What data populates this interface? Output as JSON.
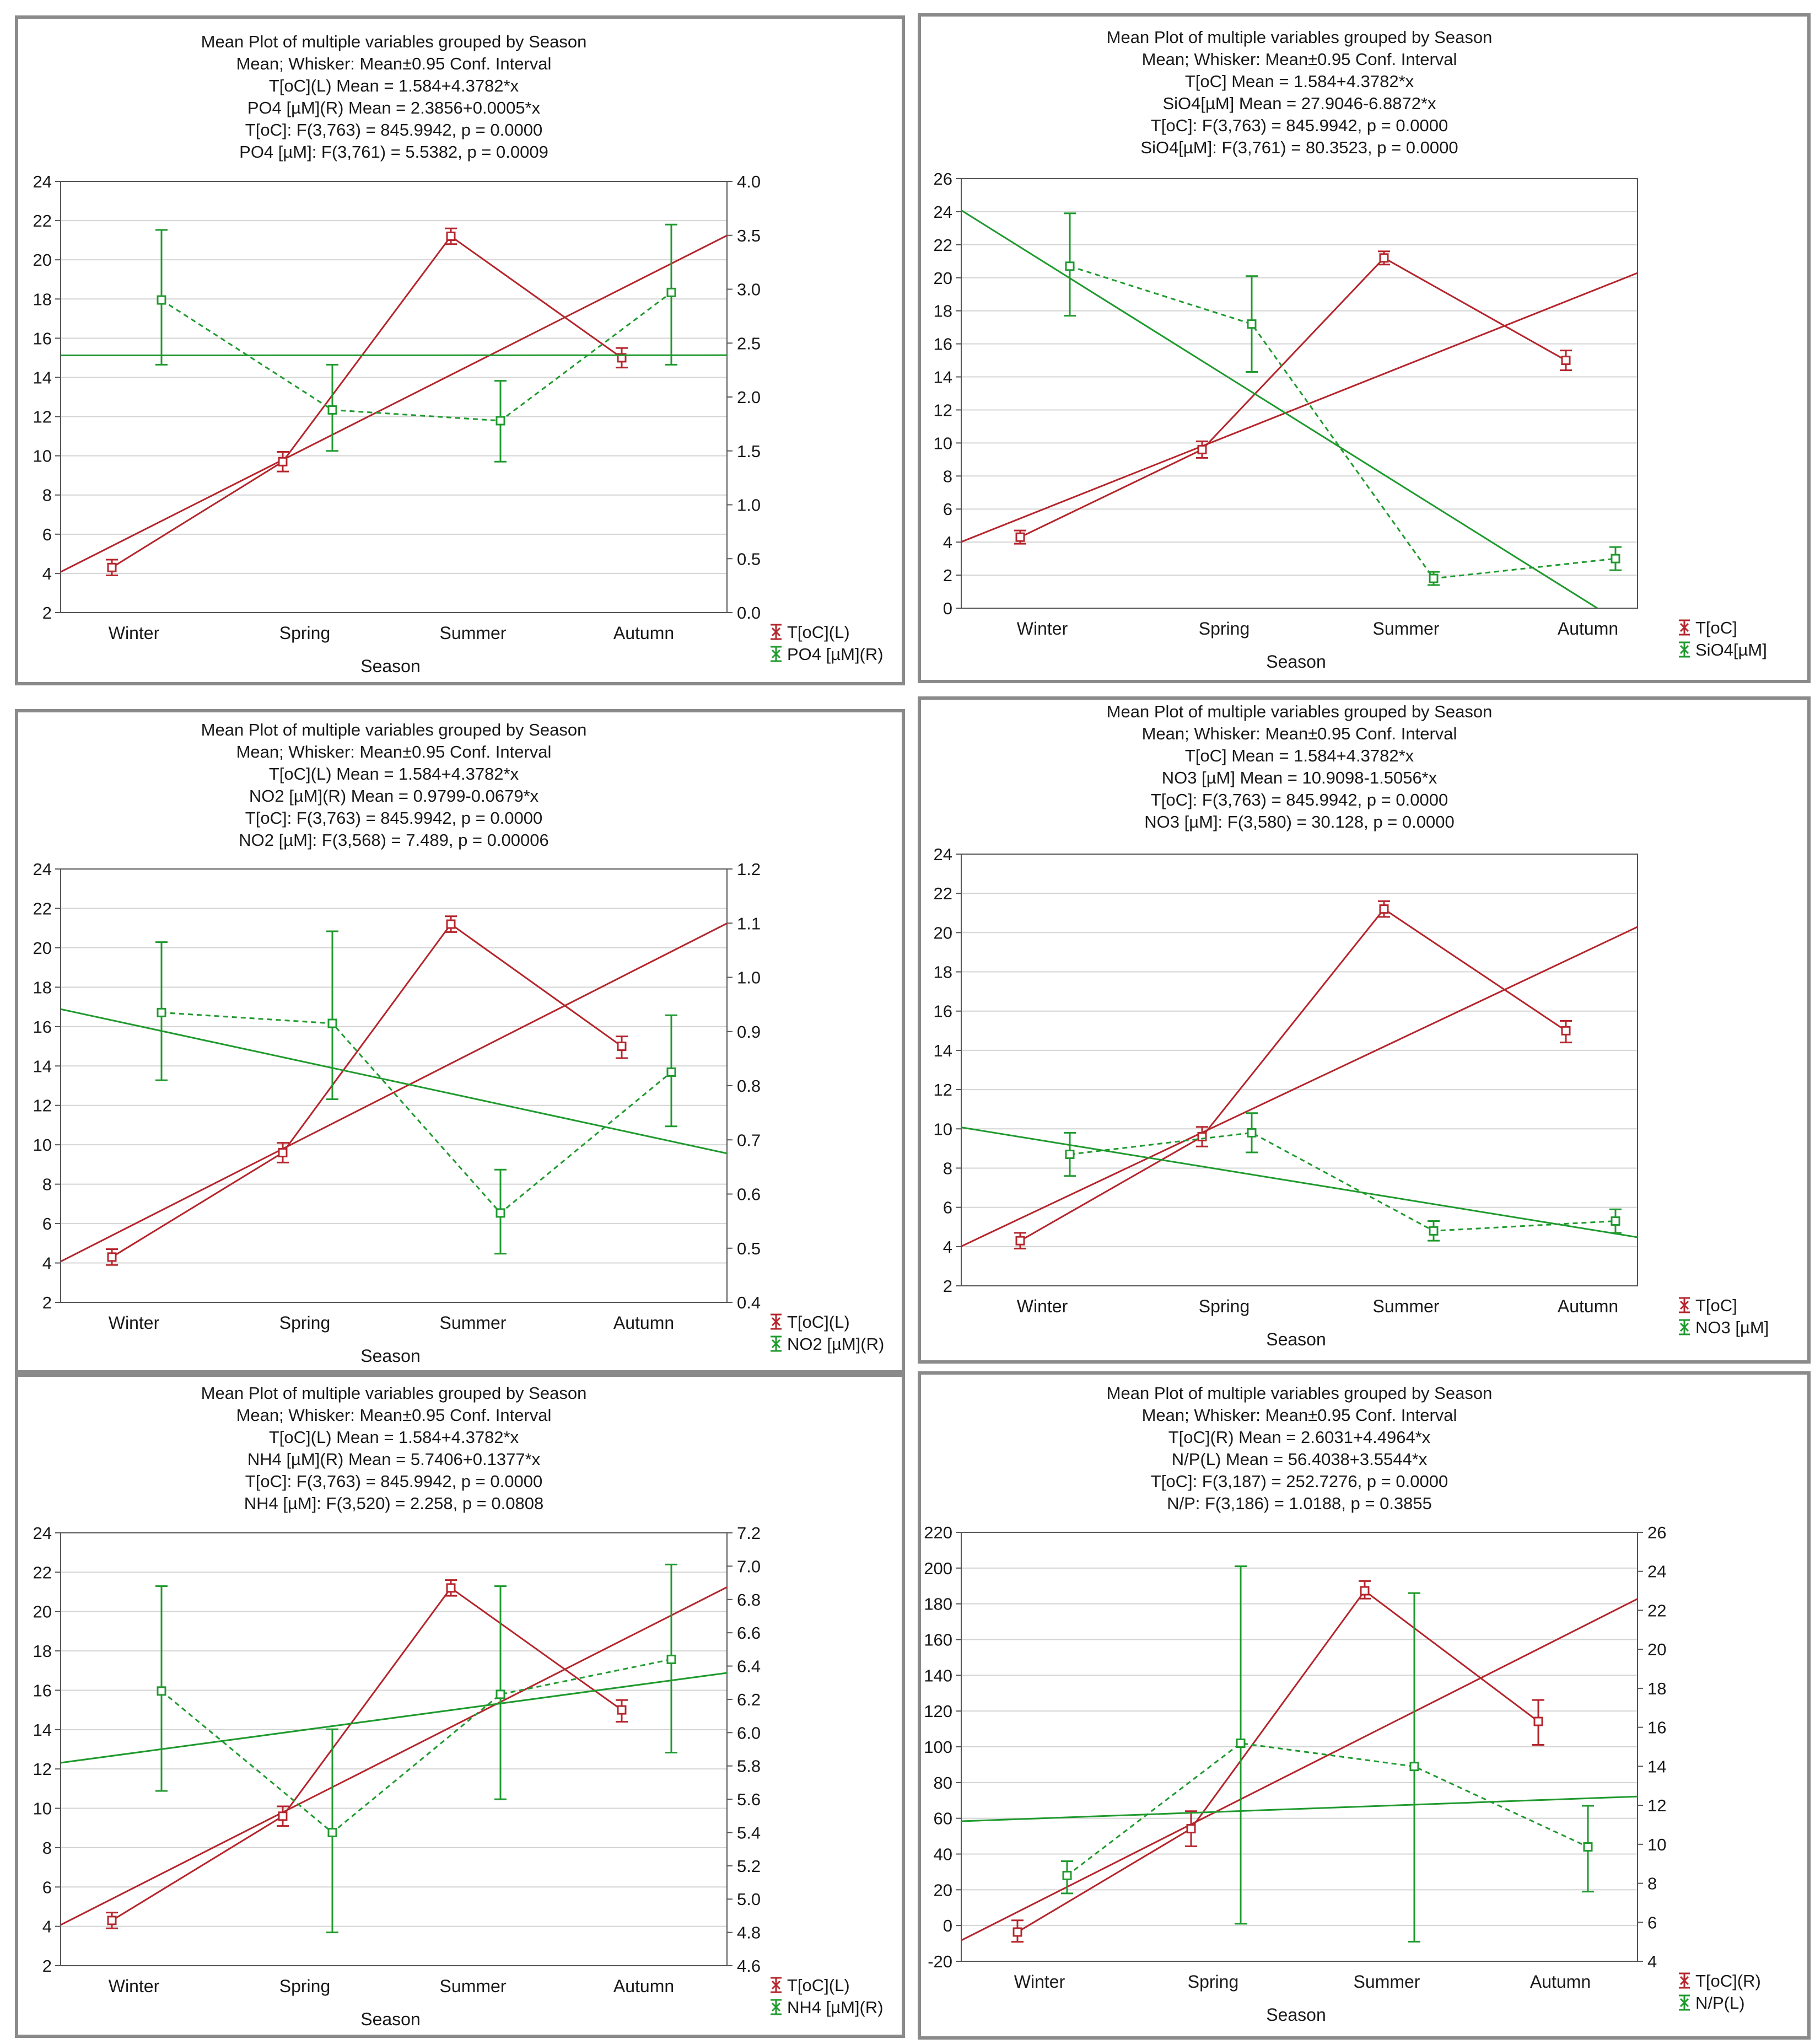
{
  "colors": {
    "red": "#b5252c",
    "green": "#1f9a2e",
    "grid": "#d4d4d4",
    "axis": "#555555",
    "border": "#8a8a8a"
  },
  "chart_data": [
    {
      "type": "line",
      "title_lines": [
        "Mean Plot of multiple variables grouped by  Season",
        "Mean; Whisker: Mean±0.95 Conf. Interval",
        "T[oC](L) Mean = 1.584+4.3782*x",
        "PO4 [µM](R) Mean = 2.3856+0.0005*x",
        "T[oC]:   F(3,763) = 845.9942, p = 0.0000",
        "PO4 [µM]:   F(3,761) = 5.5382, p = 0.0009"
      ],
      "categories": [
        "Winter",
        "Spring",
        "Summer",
        "Autumn"
      ],
      "xlabel": "Season",
      "left_axis": {
        "min": 2,
        "max": 24,
        "ticks": [
          "2",
          "4",
          "6",
          "8",
          "10",
          "12",
          "14",
          "16",
          "18",
          "20",
          "22",
          "24"
        ]
      },
      "right_axis": {
        "min": 0.0,
        "max": 4.0,
        "ticks": [
          "0.0",
          "0.5",
          "1.0",
          "1.5",
          "2.0",
          "2.5",
          "3.0",
          "3.5",
          "4.0"
        ]
      },
      "series": [
        {
          "name": "T[oC](L)",
          "axis": "left",
          "color": "red",
          "style": "solid",
          "mean": [
            4.3,
            9.7,
            21.2,
            15.0
          ],
          "lower": [
            3.9,
            9.2,
            20.8,
            14.5
          ],
          "upper": [
            4.7,
            10.2,
            21.6,
            15.5
          ],
          "fit": [
            1.584,
            4.3782
          ]
        },
        {
          "name": "PO4 [µM](R)",
          "axis": "right",
          "color": "green",
          "style": "dashed",
          "mean": [
            2.9,
            1.88,
            1.78,
            2.97
          ],
          "lower": [
            2.3,
            1.5,
            1.4,
            2.3
          ],
          "upper": [
            3.55,
            2.3,
            2.15,
            3.6
          ],
          "fit": [
            2.3856,
            0.0005
          ]
        }
      ]
    },
    {
      "type": "line",
      "title_lines": [
        "Mean Plot of multiple variables grouped by  Season",
        "Mean; Whisker: Mean±0.95 Conf. Interval",
        "T[oC] Mean = 1.584+4.3782*x",
        "SiO4[µM] Mean = 27.9046-6.8872*x",
        "T[oC]:   F(3,763) = 845.9942, p = 0.0000",
        "SiO4[µM]:   F(3,761) = 80.3523, p = 0.0000"
      ],
      "categories": [
        "Winter",
        "Spring",
        "Summer",
        "Autumn"
      ],
      "xlabel": "Season",
      "left_axis": {
        "min": 0,
        "max": 26,
        "ticks": [
          "0",
          "2",
          "4",
          "6",
          "8",
          "10",
          "12",
          "14",
          "16",
          "18",
          "20",
          "22",
          "24",
          "26"
        ]
      },
      "right_axis": null,
      "series": [
        {
          "name": "T[oC]",
          "axis": "left",
          "color": "red",
          "style": "solid",
          "mean": [
            4.3,
            9.6,
            21.2,
            15.0
          ],
          "lower": [
            3.9,
            9.1,
            20.8,
            14.4
          ],
          "upper": [
            4.7,
            10.1,
            21.6,
            15.6
          ],
          "fit": [
            1.584,
            4.3782
          ]
        },
        {
          "name": "SiO4[µM]",
          "axis": "left",
          "color": "green",
          "style": "dashed",
          "mean": [
            20.7,
            17.2,
            1.8,
            3.0
          ],
          "lower": [
            17.7,
            14.3,
            1.4,
            2.3
          ],
          "upper": [
            23.9,
            20.1,
            2.2,
            3.7
          ],
          "fit": [
            27.9046,
            -6.8872
          ]
        }
      ]
    },
    {
      "type": "line",
      "title_lines": [
        "Mean Plot of multiple variables grouped by  Season",
        "Mean; Whisker: Mean±0.95 Conf. Interval",
        "T[oC](L) Mean = 1.584+4.3782*x",
        "NO2 [µM](R) Mean = 0.9799-0.0679*x",
        "T[oC]:   F(3,763) = 845.9942, p = 0.0000",
        "NO2 [µM]:   F(3,568) = 7.489, p = 0.00006"
      ],
      "categories": [
        "Winter",
        "Spring",
        "Summer",
        "Autumn"
      ],
      "xlabel": "Season",
      "left_axis": {
        "min": 2,
        "max": 24,
        "ticks": [
          "2",
          "4",
          "6",
          "8",
          "10",
          "12",
          "14",
          "16",
          "18",
          "20",
          "22",
          "24"
        ]
      },
      "right_axis": {
        "min": 0.4,
        "max": 1.2,
        "ticks": [
          "0.4",
          "0.5",
          "0.6",
          "0.7",
          "0.8",
          "0.9",
          "1.0",
          "1.1",
          "1.2"
        ]
      },
      "series": [
        {
          "name": "T[oC](L)",
          "axis": "left",
          "color": "red",
          "style": "solid",
          "mean": [
            4.3,
            9.6,
            21.2,
            15.0
          ],
          "lower": [
            3.9,
            9.1,
            20.8,
            14.4
          ],
          "upper": [
            4.7,
            10.1,
            21.6,
            15.5
          ],
          "fit": [
            1.584,
            4.3782
          ]
        },
        {
          "name": "NO2 [µM](R)",
          "axis": "right",
          "color": "green",
          "style": "dashed",
          "mean": [
            0.935,
            0.915,
            0.565,
            0.825
          ],
          "lower": [
            0.81,
            0.775,
            0.49,
            0.725
          ],
          "upper": [
            1.065,
            1.085,
            0.645,
            0.93
          ],
          "fit": [
            0.9799,
            -0.0679
          ]
        }
      ]
    },
    {
      "type": "line",
      "title_lines": [
        "Mean Plot of multiple variables grouped by  Season",
        "Mean; Whisker: Mean±0.95 Conf. Interval",
        "T[oC] Mean = 1.584+4.3782*x",
        "NO3 [µM] Mean = 10.9098-1.5056*x",
        "T[oC]:   F(3,763) = 845.9942, p = 0.0000",
        "NO3 [µM]:   F(3,580) = 30.128, p = 0.0000"
      ],
      "categories": [
        "Winter",
        "Spring",
        "Summer",
        "Autumn"
      ],
      "xlabel": "Season",
      "left_axis": {
        "min": 2,
        "max": 24,
        "ticks": [
          "2",
          "4",
          "6",
          "8",
          "10",
          "12",
          "14",
          "16",
          "18",
          "20",
          "22",
          "24"
        ]
      },
      "right_axis": null,
      "series": [
        {
          "name": "T[oC]",
          "axis": "left",
          "color": "red",
          "style": "solid",
          "mean": [
            4.3,
            9.6,
            21.2,
            15.0
          ],
          "lower": [
            3.9,
            9.1,
            20.8,
            14.4
          ],
          "upper": [
            4.7,
            10.1,
            21.6,
            15.5
          ],
          "fit": [
            1.584,
            4.3782
          ]
        },
        {
          "name": "NO3 [µM]",
          "axis": "left",
          "color": "green",
          "style": "dashed",
          "mean": [
            8.7,
            9.8,
            4.8,
            5.3
          ],
          "lower": [
            7.6,
            8.8,
            4.3,
            4.7
          ],
          "upper": [
            9.8,
            10.8,
            5.3,
            5.9
          ],
          "fit": [
            10.9098,
            -1.5056
          ]
        }
      ]
    },
    {
      "type": "line",
      "title_lines": [
        "Mean Plot of multiple variables grouped by  Season",
        "Mean; Whisker: Mean±0.95 Conf. Interval",
        "T[oC](L) Mean = 1.584+4.3782*x",
        "NH4 [µM](R) Mean = 5.7406+0.1377*x",
        "T[oC]:   F(3,763) = 845.9942, p = 0.0000",
        "NH4 [µM]:   F(3,520) = 2.258, p = 0.0808"
      ],
      "categories": [
        "Winter",
        "Spring",
        "Summer",
        "Autumn"
      ],
      "xlabel": "Season",
      "left_axis": {
        "min": 2,
        "max": 24,
        "ticks": [
          "2",
          "4",
          "6",
          "8",
          "10",
          "12",
          "14",
          "16",
          "18",
          "20",
          "22",
          "24"
        ]
      },
      "right_axis": {
        "min": 4.6,
        "max": 7.2,
        "ticks": [
          "4.6",
          "4.8",
          "5.0",
          "5.2",
          "5.4",
          "5.6",
          "5.8",
          "6.0",
          "6.2",
          "6.4",
          "6.6",
          "6.8",
          "7.0",
          "7.2"
        ]
      },
      "series": [
        {
          "name": "T[oC](L)",
          "axis": "left",
          "color": "red",
          "style": "solid",
          "mean": [
            4.3,
            9.6,
            21.2,
            15.0
          ],
          "lower": [
            3.9,
            9.1,
            20.8,
            14.4
          ],
          "upper": [
            4.7,
            10.1,
            21.6,
            15.5
          ],
          "fit": [
            1.584,
            4.3782
          ]
        },
        {
          "name": "NH4 [µM](R)",
          "axis": "right",
          "color": "green",
          "style": "dashed",
          "mean": [
            6.25,
            5.4,
            6.23,
            6.44
          ],
          "lower": [
            5.65,
            4.8,
            5.6,
            5.88
          ],
          "upper": [
            6.88,
            6.02,
            6.88,
            7.01
          ],
          "fit": [
            5.7406,
            0.1377
          ]
        }
      ]
    },
    {
      "type": "line",
      "title_lines": [
        "Mean Plot of multiple variables grouped by  Season",
        "Mean; Whisker: Mean±0.95 Conf. Interval",
        "T[oC](R) Mean = 2.6031+4.4964*x",
        "N/P(L) Mean = 56.4038+3.5544*x",
        "T[oC]:   F(3,187) = 252.7276, p = 0.0000",
        "N/P:   F(3,186) = 1.0188, p = 0.3855"
      ],
      "categories": [
        "Winter",
        "Spring",
        "Summer",
        "Autumn"
      ],
      "xlabel": "Season",
      "left_axis": {
        "min": -20,
        "max": 220,
        "ticks": [
          "-20",
          "0",
          "20",
          "40",
          "60",
          "80",
          "100",
          "120",
          "140",
          "160",
          "180",
          "200",
          "220"
        ]
      },
      "right_axis": {
        "min": 4,
        "max": 26,
        "ticks": [
          "4",
          "6",
          "8",
          "10",
          "12",
          "14",
          "16",
          "18",
          "20",
          "22",
          "24",
          "26"
        ]
      },
      "series": [
        {
          "name": "T[oC](R)",
          "axis": "right",
          "color": "red",
          "style": "solid",
          "mean": [
            5.5,
            10.8,
            23.0,
            16.3
          ],
          "lower": [
            5.0,
            9.9,
            22.6,
            15.1
          ],
          "upper": [
            6.1,
            11.7,
            23.5,
            17.4
          ],
          "fit": [
            2.6031,
            4.4964
          ]
        },
        {
          "name": "N/P(L)",
          "axis": "left",
          "color": "green",
          "style": "dashed",
          "mean": [
            28,
            102,
            89,
            44
          ],
          "lower": [
            18,
            1,
            -9,
            19
          ],
          "upper": [
            36,
            201,
            186,
            67
          ],
          "fit": [
            56.4038,
            3.5544
          ]
        }
      ]
    }
  ]
}
